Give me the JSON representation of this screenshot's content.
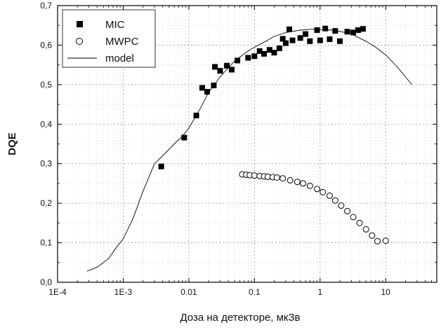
{
  "chart_data": {
    "type": "scatter",
    "xlabel": "Доза на детекторе, мкЗв",
    "ylabel": "DQE",
    "x_scale": "log",
    "xlim": [
      0.0001,
      60
    ],
    "ylim": [
      0,
      0.7
    ],
    "x_ticks": [
      {
        "value": 0.0001,
        "label": "1E-4"
      },
      {
        "value": 0.001,
        "label": "1E-3"
      },
      {
        "value": 0.01,
        "label": "0.01"
      },
      {
        "value": 0.1,
        "label": "0.1"
      },
      {
        "value": 1,
        "label": "1"
      },
      {
        "value": 10,
        "label": "10"
      }
    ],
    "y_ticks": [
      {
        "value": 0.0,
        "label": "0,0"
      },
      {
        "value": 0.1,
        "label": "0,1"
      },
      {
        "value": 0.2,
        "label": "0,2"
      },
      {
        "value": 0.3,
        "label": "0,3"
      },
      {
        "value": 0.4,
        "label": "0,4"
      },
      {
        "value": 0.5,
        "label": "0,5"
      },
      {
        "value": 0.6,
        "label": "0,6"
      },
      {
        "value": 0.7,
        "label": "0,7"
      }
    ],
    "grid": true,
    "legend_position": "top-left",
    "series": [
      {
        "name": "MIC",
        "marker": "filled-square",
        "color": "#000000",
        "points": [
          [
            0.0038,
            0.293
          ],
          [
            0.0085,
            0.366
          ],
          [
            0.013,
            0.422
          ],
          [
            0.016,
            0.492
          ],
          [
            0.019,
            0.482
          ],
          [
            0.024,
            0.498
          ],
          [
            0.025,
            0.545
          ],
          [
            0.03,
            0.535
          ],
          [
            0.038,
            0.548
          ],
          [
            0.045,
            0.538
          ],
          [
            0.055,
            0.561
          ],
          [
            0.08,
            0.568
          ],
          [
            0.1,
            0.572
          ],
          [
            0.12,
            0.585
          ],
          [
            0.14,
            0.578
          ],
          [
            0.17,
            0.588
          ],
          [
            0.2,
            0.581
          ],
          [
            0.24,
            0.592
          ],
          [
            0.27,
            0.616
          ],
          [
            0.3,
            0.605
          ],
          [
            0.34,
            0.64
          ],
          [
            0.38,
            0.612
          ],
          [
            0.5,
            0.618
          ],
          [
            0.6,
            0.628
          ],
          [
            0.7,
            0.61
          ],
          [
            0.9,
            0.638
          ],
          [
            1.0,
            0.612
          ],
          [
            1.2,
            0.642
          ],
          [
            1.4,
            0.615
          ],
          [
            1.7,
            0.636
          ],
          [
            2.0,
            0.61
          ],
          [
            2.6,
            0.634
          ],
          [
            3.2,
            0.632
          ],
          [
            3.8,
            0.638
          ],
          [
            4.5,
            0.641
          ]
        ]
      },
      {
        "name": "MWPC",
        "marker": "open-circle",
        "color": "#000000",
        "points": [
          [
            0.065,
            0.273
          ],
          [
            0.075,
            0.272
          ],
          [
            0.085,
            0.271
          ],
          [
            0.1,
            0.27
          ],
          [
            0.12,
            0.269
          ],
          [
            0.14,
            0.268
          ],
          [
            0.16,
            0.267
          ],
          [
            0.19,
            0.266
          ],
          [
            0.22,
            0.265
          ],
          [
            0.27,
            0.263
          ],
          [
            0.35,
            0.258
          ],
          [
            0.45,
            0.254
          ],
          [
            0.55,
            0.25
          ],
          [
            0.7,
            0.244
          ],
          [
            0.9,
            0.236
          ],
          [
            1.1,
            0.228
          ],
          [
            1.4,
            0.219
          ],
          [
            1.7,
            0.207
          ],
          [
            2.1,
            0.194
          ],
          [
            2.6,
            0.18
          ],
          [
            3.2,
            0.165
          ],
          [
            4.0,
            0.15
          ],
          [
            5.0,
            0.134
          ],
          [
            6.2,
            0.118
          ],
          [
            7.5,
            0.104
          ],
          [
            10,
            0.105
          ]
        ]
      },
      {
        "name": "model",
        "marker": "line",
        "color": "#000000",
        "points": [
          [
            0.00028,
            0.028
          ],
          [
            0.0004,
            0.038
          ],
          [
            0.0006,
            0.06
          ],
          [
            0.0008,
            0.09
          ],
          [
            0.001,
            0.11
          ],
          [
            0.0014,
            0.16
          ],
          [
            0.002,
            0.23
          ],
          [
            0.003,
            0.3
          ],
          [
            0.004,
            0.32
          ],
          [
            0.006,
            0.35
          ],
          [
            0.008,
            0.37
          ],
          [
            0.01,
            0.39
          ],
          [
            0.015,
            0.44
          ],
          [
            0.02,
            0.48
          ],
          [
            0.03,
            0.52
          ],
          [
            0.05,
            0.56
          ],
          [
            0.08,
            0.585
          ],
          [
            0.1,
            0.595
          ],
          [
            0.15,
            0.61
          ],
          [
            0.2,
            0.622
          ],
          [
            0.3,
            0.632
          ],
          [
            0.5,
            0.638
          ],
          [
            0.7,
            0.64
          ],
          [
            1.0,
            0.64
          ],
          [
            1.5,
            0.638
          ],
          [
            2.0,
            0.635
          ],
          [
            3.0,
            0.628
          ],
          [
            5.0,
            0.61
          ],
          [
            7.0,
            0.595
          ],
          [
            10,
            0.575
          ],
          [
            15,
            0.545
          ],
          [
            20,
            0.52
          ],
          [
            25,
            0.5
          ]
        ]
      }
    ]
  }
}
